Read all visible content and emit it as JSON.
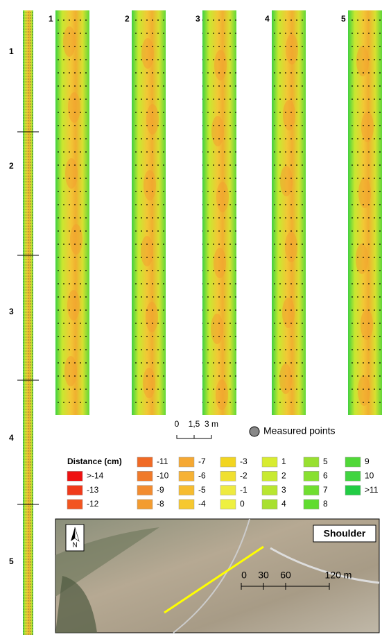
{
  "strip_labels": [
    "1",
    "2",
    "3",
    "4",
    "5"
  ],
  "panel_labels": [
    "1",
    "2",
    "3",
    "4",
    "5"
  ],
  "scale": {
    "labels": [
      "0",
      "1,5",
      "3 m"
    ]
  },
  "measured_points": "Measured points",
  "legend": {
    "title": "Distance (cm)",
    "items": [
      {
        "label": ">-14",
        "color": "#ee1111"
      },
      {
        "label": "-13",
        "color": "#f03a1a"
      },
      {
        "label": "-12",
        "color": "#f25520"
      },
      {
        "label": "-11",
        "color": "#f06a25"
      },
      {
        "label": "-10",
        "color": "#f07a2a"
      },
      {
        "label": "-9",
        "color": "#f28c30"
      },
      {
        "label": "-8",
        "color": "#f39c30"
      },
      {
        "label": "-7",
        "color": "#f5a833"
      },
      {
        "label": "-6",
        "color": "#f6b235"
      },
      {
        "label": "-5",
        "color": "#f6bc30"
      },
      {
        "label": "-4",
        "color": "#f6c830"
      },
      {
        "label": "-3",
        "color": "#f2d520"
      },
      {
        "label": "-2",
        "color": "#f0e030"
      },
      {
        "label": "-1",
        "color": "#eeea40"
      },
      {
        "label": "0",
        "color": "#eef040"
      },
      {
        "label": "1",
        "color": "#d8ec30"
      },
      {
        "label": "2",
        "color": "#c8ea30"
      },
      {
        "label": "3",
        "color": "#b8e630"
      },
      {
        "label": "4",
        "color": "#a8e030"
      },
      {
        "label": "5",
        "color": "#98e030"
      },
      {
        "label": "6",
        "color": "#88e030"
      },
      {
        "label": "7",
        "color": "#70de30"
      },
      {
        "label": "8",
        "color": "#60dc30"
      },
      {
        "label": "9",
        "color": "#50d838"
      },
      {
        "label": "10",
        "color": "#40d440"
      },
      {
        "label": ">11",
        "color": "#22cc44"
      }
    ]
  },
  "inset": {
    "title": "Shoulder",
    "north": "N",
    "scale": [
      "0",
      "30",
      "60",
      "120 m"
    ]
  }
}
